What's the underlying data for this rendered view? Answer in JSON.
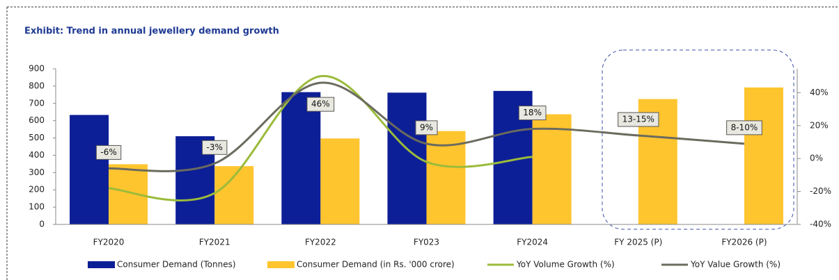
{
  "chart_data": {
    "type": "combo",
    "title": "Exhibit: Trend in annual jewellery demand growth",
    "categories": [
      "FY2020",
      "FY2021",
      "FY2022",
      "FY023",
      "FY2024",
      "FY 2025 (P)",
      "FY2026 (P)"
    ],
    "ylim": [
      0,
      900
    ],
    "yticks": [
      0,
      100,
      200,
      300,
      400,
      500,
      600,
      700,
      800,
      900
    ],
    "y2lim": [
      -40,
      54.5
    ],
    "y2ticks": [
      {
        "value": -40,
        "label": "-40%"
      },
      {
        "value": -20,
        "label": "-20%"
      },
      {
        "value": 0,
        "label": "0%"
      },
      {
        "value": 20,
        "label": "20%"
      },
      {
        "value": 40,
        "label": "40%"
      }
    ],
    "legend": "bottom",
    "series": [
      {
        "name": "Consumer Demand (Tonnes)",
        "type": "bar",
        "color": "#0d1f96",
        "values": [
          633,
          510,
          765,
          762,
          772,
          null,
          null
        ]
      },
      {
        "name": "Consumer Demand (in Rs. '000 crore)",
        "type": "bar",
        "color": "#ffc52f",
        "values": [
          348,
          337,
          497,
          540,
          637,
          725,
          792
        ]
      },
      {
        "name": "YoY Volume Growth (%)",
        "type": "line",
        "axis": "y2",
        "color": "#9bbb3b",
        "values": [
          -18,
          -21,
          50,
          -2,
          1,
          null,
          null
        ]
      },
      {
        "name": "YoY Value Growth (%)",
        "type": "line",
        "axis": "y2",
        "color": "#6b6b5e",
        "values": [
          -6,
          -3,
          46,
          9,
          18,
          14,
          9
        ],
        "value_labels": [
          "-6%",
          "-3%",
          "46%",
          "9%",
          "18%",
          "13-15%",
          "8-10%"
        ]
      }
    ]
  }
}
